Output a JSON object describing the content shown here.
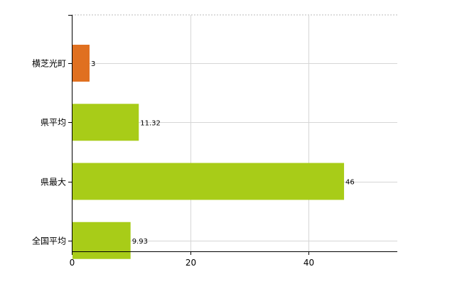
{
  "chart_data": {
    "type": "bar",
    "orientation": "horizontal",
    "categories": [
      "横芝光町",
      "県平均",
      "県最大",
      "全国平均"
    ],
    "values": [
      3,
      11.32,
      46,
      9.93
    ],
    "data_labels": [
      "3",
      "11.32",
      "46",
      "9.93"
    ],
    "bar_colors": [
      "#e07020",
      "#a8cc18",
      "#a8cc18",
      "#a8cc18"
    ],
    "xlim": [
      0,
      55
    ],
    "x_ticks": [
      0,
      20,
      40
    ],
    "x_tick_labels": [
      "0",
      "20",
      "40"
    ],
    "grid": true,
    "title": "",
    "xlabel": "",
    "ylabel": ""
  }
}
